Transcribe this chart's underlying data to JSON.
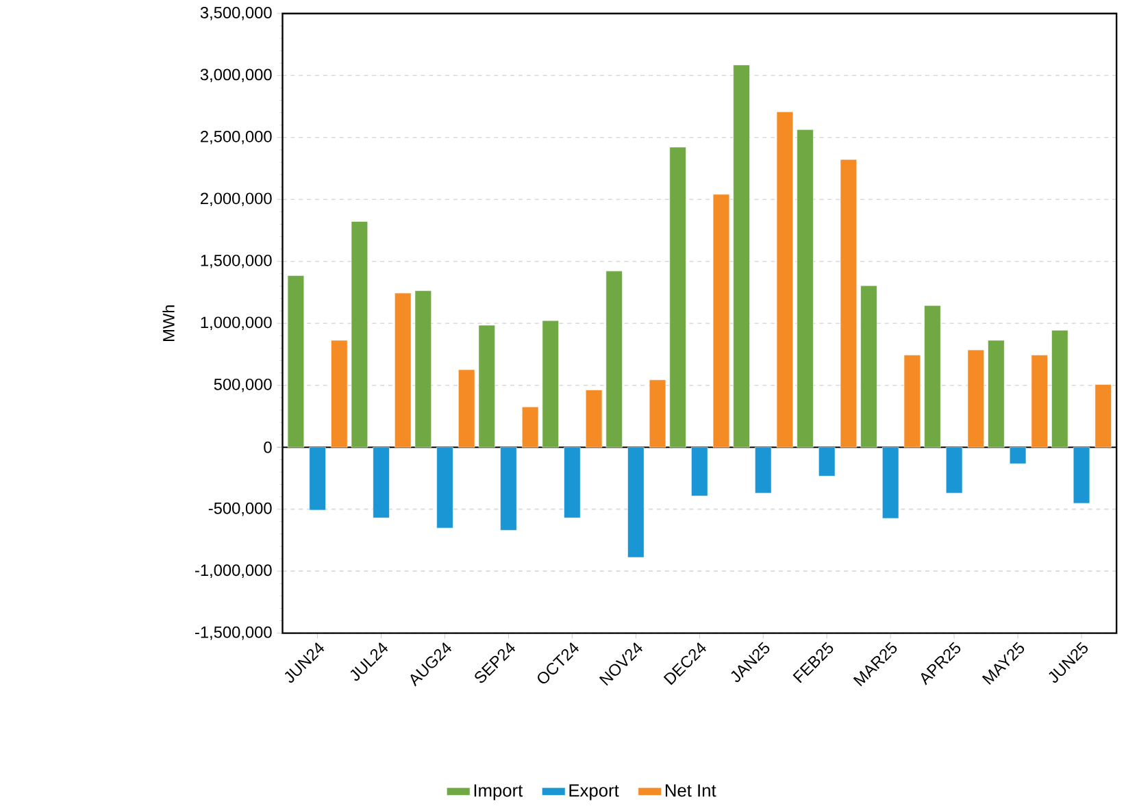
{
  "chart_data": {
    "type": "bar",
    "ylabel": "MWh",
    "categories": [
      "JUN24",
      "JUL24",
      "AUG24",
      "SEP24",
      "OCT24",
      "NOV24",
      "DEC24",
      "JAN25",
      "FEB25",
      "MAR25",
      "APR25",
      "MAY25",
      "JUN25"
    ],
    "series": [
      {
        "name": "Import",
        "color": "#70a844",
        "values": [
          1385000,
          1822000,
          1263000,
          985000,
          1022000,
          1422000,
          2422000,
          3085000,
          2563000,
          1304000,
          1144000,
          863000,
          944000
        ]
      },
      {
        "name": "Export",
        "color": "#1a96d4",
        "values": [
          -507000,
          -570000,
          -652000,
          -670000,
          -570000,
          -889000,
          -393000,
          -370000,
          -233000,
          -574000,
          -370000,
          -133000,
          -452000
        ]
      },
      {
        "name": "Net Int",
        "color": "#f58b24",
        "values": [
          863000,
          1244000,
          626000,
          326000,
          463000,
          544000,
          2041000,
          2707000,
          2322000,
          744000,
          785000,
          744000,
          507000
        ]
      }
    ],
    "ylim": [
      -1500000,
      3500000
    ],
    "yticks": [
      {
        "value": -1500000,
        "label": "-1,500,000"
      },
      {
        "value": -1000000,
        "label": "-1,000,000"
      },
      {
        "value": -500000,
        "label": "-500,000"
      },
      {
        "value": 0,
        "label": "0"
      },
      {
        "value": 500000,
        "label": "500,000"
      },
      {
        "value": 1000000,
        "label": "1,000,000"
      },
      {
        "value": 1500000,
        "label": "1,500,000"
      },
      {
        "value": 2000000,
        "label": "2,000,000"
      },
      {
        "value": 2500000,
        "label": "2,500,000"
      },
      {
        "value": 3000000,
        "label": "3,000,000"
      },
      {
        "value": 3500000,
        "label": "3,500,000"
      }
    ],
    "grid": "y",
    "legend": "bottom"
  }
}
